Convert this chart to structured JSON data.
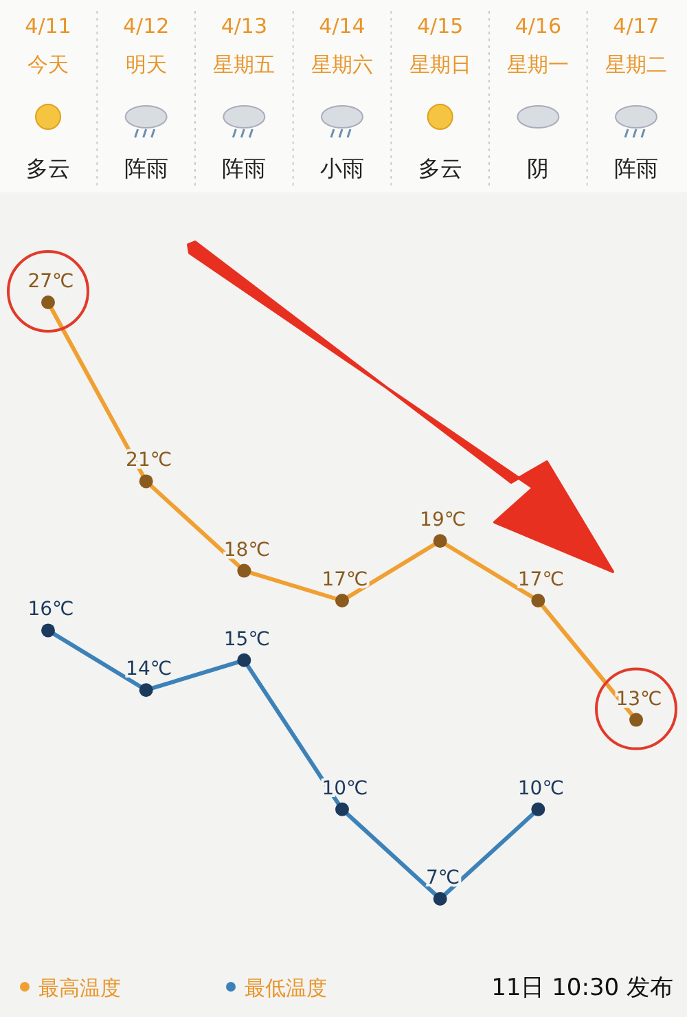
{
  "chart_data": {
    "type": "line",
    "categories": [
      "4/11",
      "4/12",
      "4/13",
      "4/14",
      "4/15",
      "4/16",
      "4/17"
    ],
    "series": [
      {
        "name": "最高温度",
        "color": "#f0a032",
        "values": [
          27,
          21,
          18,
          17,
          19,
          17,
          13
        ],
        "value_labels": [
          "27℃",
          "21℃",
          "18℃",
          "17℃",
          "19℃",
          "17℃",
          "13℃"
        ]
      },
      {
        "name": "最低温度",
        "color": "#3c82b9",
        "values": [
          16,
          14,
          15,
          10,
          7,
          10,
          null
        ],
        "value_labels": [
          "16℃",
          "14℃",
          "15℃",
          "10℃",
          "7℃",
          "10℃",
          null
        ]
      }
    ],
    "annotations": [
      "今天",
      "明天",
      "星期五",
      "星期六",
      "星期日",
      "星期一",
      "星期二",
      "多云",
      "阵雨",
      "阵雨",
      "小雨",
      "多云",
      "阴",
      "阵雨",
      "11日 10:30 发布"
    ],
    "marker": "circle",
    "line_style": "solid",
    "legend": "bottom left"
  }
}
